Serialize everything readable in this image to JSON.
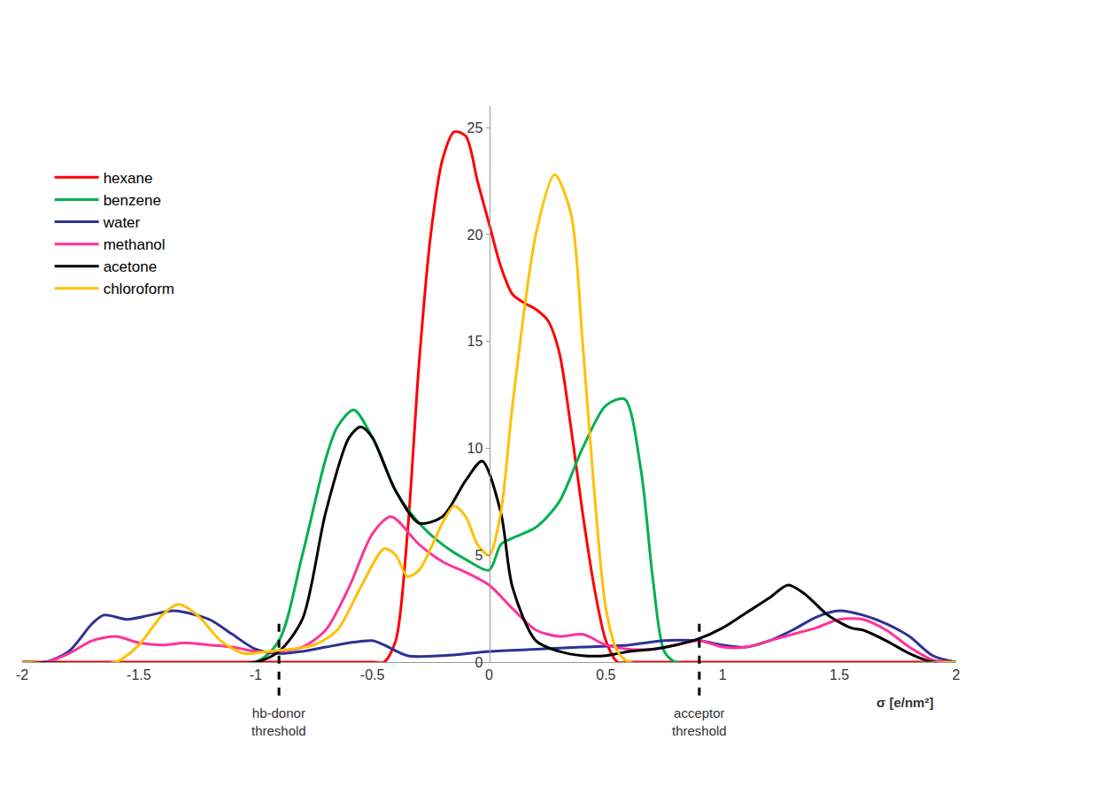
{
  "chart_data": {
    "type": "line",
    "xlabel": "σ [e/nm²]",
    "xlim": [
      -2,
      2
    ],
    "xticks": [
      -2,
      -1.5,
      -1,
      -0.5,
      0,
      0.5,
      1,
      1.5,
      2
    ],
    "ylim": [
      0,
      26
    ],
    "yticks": [
      0,
      5,
      10,
      15,
      20,
      25
    ],
    "grid": false,
    "legend": "upper left",
    "series": [
      {
        "name": "hexane",
        "color": "#ff0000",
        "x": [
          -2,
          -0.5,
          -0.45,
          -0.4,
          -0.35,
          -0.3,
          -0.25,
          -0.2,
          -0.15,
          -0.1,
          -0.05,
          0,
          0.05,
          0.1,
          0.15,
          0.2,
          0.25,
          0.3,
          0.35,
          0.4,
          0.45,
          0.5,
          0.55,
          0.6,
          2
        ],
        "values": [
          0,
          0,
          0,
          1,
          6,
          14,
          20,
          23.5,
          24.8,
          24.6,
          22.5,
          20.5,
          18.5,
          17.2,
          16.8,
          16.5,
          16,
          14.5,
          11,
          7,
          3.5,
          1,
          0,
          0,
          0
        ]
      },
      {
        "name": "benzene",
        "color": "#00b050",
        "x": [
          -2,
          -1,
          -0.9,
          -0.8,
          -0.7,
          -0.65,
          -0.58,
          -0.5,
          -0.4,
          -0.3,
          -0.2,
          -0.1,
          0,
          0.05,
          0.1,
          0.2,
          0.3,
          0.4,
          0.5,
          0.58,
          0.65,
          0.7,
          0.75,
          0.8,
          2
        ],
        "values": [
          0,
          0,
          1,
          5,
          9.5,
          11,
          11.8,
          10.5,
          8,
          6.5,
          5.5,
          4.8,
          4.3,
          5.5,
          5.8,
          6.3,
          7.5,
          10,
          12,
          12.3,
          9,
          4,
          0.5,
          0,
          0
        ]
      },
      {
        "name": "water",
        "color": "#2e3192",
        "x": [
          -2,
          -1.9,
          -1.8,
          -1.7,
          -1.65,
          -1.55,
          -1.45,
          -1.35,
          -1.2,
          -1.1,
          -1,
          -0.9,
          -0.8,
          -0.7,
          -0.6,
          -0.5,
          -0.45,
          -0.35,
          -0.2,
          0,
          0.2,
          0.4,
          0.6,
          0.75,
          0.9,
          1,
          1.1,
          1.2,
          1.3,
          1.4,
          1.5,
          1.6,
          1.7,
          1.8,
          1.9,
          2
        ],
        "values": [
          0,
          0,
          0.5,
          1.8,
          2.2,
          2,
          2.2,
          2.4,
          2,
          1.3,
          0.6,
          0.4,
          0.5,
          0.7,
          0.9,
          1,
          0.8,
          0.3,
          0.3,
          0.5,
          0.6,
          0.7,
          0.8,
          1,
          1,
          0.8,
          0.7,
          1,
          1.5,
          2.1,
          2.4,
          2.2,
          1.8,
          1.2,
          0.3,
          0
        ]
      },
      {
        "name": "methanol",
        "color": "#ff3399",
        "x": [
          -2,
          -1.9,
          -1.8,
          -1.7,
          -1.6,
          -1.5,
          -1.4,
          -1.3,
          -1.2,
          -1.1,
          -1,
          -0.9,
          -0.8,
          -0.7,
          -0.6,
          -0.5,
          -0.42,
          -0.3,
          -0.2,
          -0.1,
          0,
          0.1,
          0.2,
          0.3,
          0.4,
          0.5,
          0.6,
          0.7,
          0.8,
          0.9,
          1,
          1.1,
          1.2,
          1.3,
          1.4,
          1.5,
          1.6,
          1.7,
          1.8,
          1.9,
          2
        ],
        "values": [
          0,
          0,
          0.4,
          1,
          1.2,
          0.9,
          0.8,
          0.9,
          0.8,
          0.7,
          0.5,
          0.5,
          0.7,
          1.5,
          3.5,
          6,
          6.8,
          5.5,
          4.7,
          4.2,
          3.6,
          2.5,
          1.5,
          1.2,
          1.3,
          0.8,
          0.6,
          0.6,
          0.8,
          1,
          0.7,
          0.7,
          1,
          1.3,
          1.6,
          2,
          2,
          1.5,
          0.7,
          0.1,
          0
        ]
      },
      {
        "name": "acetone",
        "color": "#000000",
        "x": [
          -2,
          -1,
          -0.9,
          -0.8,
          -0.7,
          -0.6,
          -0.55,
          -0.5,
          -0.4,
          -0.3,
          -0.2,
          -0.1,
          -0.03,
          0.05,
          0.1,
          0.2,
          0.3,
          0.4,
          0.5,
          0.6,
          0.7,
          0.8,
          0.9,
          1,
          1.1,
          1.2,
          1.28,
          1.35,
          1.45,
          1.55,
          1.6,
          1.7,
          1.8,
          1.9,
          2
        ],
        "values": [
          0,
          0,
          0.5,
          2,
          7,
          10.5,
          11,
          10.5,
          8,
          6.5,
          6.8,
          8.5,
          9.4,
          7,
          3.5,
          1,
          0.5,
          0.3,
          0.3,
          0.5,
          0.6,
          0.8,
          1.1,
          1.6,
          2.3,
          3,
          3.6,
          3.2,
          2.2,
          1.6,
          1.5,
          1,
          0.4,
          0,
          0
        ]
      },
      {
        "name": "chloroform",
        "color": "#ffc000",
        "x": [
          -2,
          -1.6,
          -1.5,
          -1.4,
          -1.33,
          -1.25,
          -1.15,
          -1.05,
          -0.95,
          -0.85,
          -0.75,
          -0.65,
          -0.55,
          -0.45,
          -0.4,
          -0.35,
          -0.3,
          -0.2,
          -0.15,
          -0.1,
          -0.05,
          0,
          0.05,
          0.1,
          0.2,
          0.28,
          0.35,
          0.4,
          0.45,
          0.5,
          0.55,
          0.6,
          2
        ],
        "values": [
          0,
          0,
          0.8,
          2.2,
          2.7,
          2.2,
          1,
          0.4,
          0.5,
          0.6,
          0.8,
          1.5,
          3.5,
          5.3,
          5,
          4,
          4.3,
          6.5,
          7.3,
          6.8,
          5.5,
          5,
          7,
          12,
          20,
          22.8,
          21,
          15,
          8,
          2.5,
          0.5,
          0,
          0
        ]
      }
    ],
    "thresholds": [
      {
        "x": -0.9,
        "label": "hb-donor threshold"
      },
      {
        "x": 0.9,
        "label": "acceptor threshold"
      }
    ]
  }
}
